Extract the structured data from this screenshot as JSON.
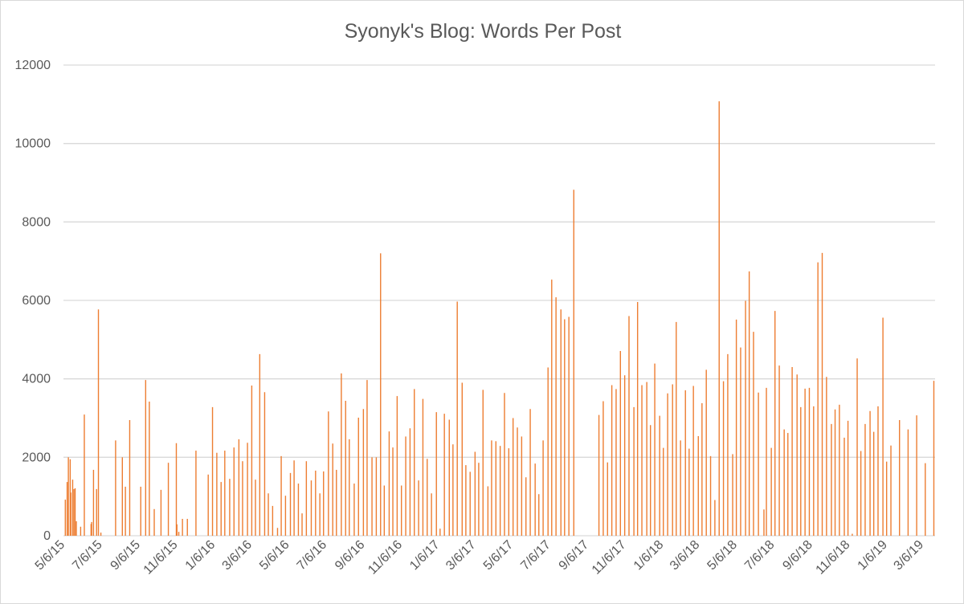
{
  "chart_data": {
    "type": "bar",
    "title": "Syonyk's Blog: Words Per Post",
    "xlabel": "",
    "ylabel": "",
    "ylim": [
      0,
      12000
    ],
    "yticks": [
      "0",
      "2000",
      "4000",
      "6000",
      "8000",
      "10000",
      "12000"
    ],
    "x_start_date": "5/6/15",
    "x_unit": "days since 5/6/15",
    "xlim_days": [
      -3,
      1418
    ],
    "xtick_labels": [
      "5/6/15",
      "7/6/15",
      "9/6/15",
      "11/6/15",
      "1/6/16",
      "3/6/16",
      "5/6/16",
      "7/6/16",
      "9/6/16",
      "11/6/16",
      "1/6/17",
      "3/6/17",
      "5/6/17",
      "7/6/17",
      "9/6/17",
      "11/6/17",
      "1/6/18",
      "3/6/18",
      "5/6/18",
      "7/6/18",
      "9/6/18",
      "11/6/18",
      "1/6/19",
      "3/6/19"
    ],
    "grid": true,
    "legend": "none",
    "bar_color": "#ED7D31",
    "series": [
      {
        "name": "Words Per Post",
        "points": [
          [
            0,
            920
          ],
          [
            3,
            1370
          ],
          [
            5,
            2000
          ],
          [
            8,
            1950
          ],
          [
            9,
            1100
          ],
          [
            12,
            1430
          ],
          [
            14,
            1190
          ],
          [
            16,
            1210
          ],
          [
            18,
            370
          ],
          [
            25,
            230
          ],
          [
            31,
            3090
          ],
          [
            42,
            300
          ],
          [
            43,
            350
          ],
          [
            46,
            1680
          ],
          [
            51,
            1190
          ],
          [
            54,
            5770
          ],
          [
            58,
            80
          ],
          [
            82,
            2430
          ],
          [
            93,
            2000
          ],
          [
            98,
            1250
          ],
          [
            105,
            2950
          ],
          [
            123,
            1250
          ],
          [
            131,
            3970
          ],
          [
            137,
            3420
          ],
          [
            145,
            680
          ],
          [
            156,
            1170
          ],
          [
            168,
            1860
          ],
          [
            181,
            2360
          ],
          [
            182,
            290
          ],
          [
            185,
            100
          ],
          [
            191,
            430
          ],
          [
            199,
            430
          ],
          [
            213,
            2170
          ],
          [
            233,
            1560
          ],
          [
            240,
            3280
          ],
          [
            247,
            2115
          ],
          [
            254,
            1370
          ],
          [
            260,
            2170
          ],
          [
            268,
            1450
          ],
          [
            275,
            2250
          ],
          [
            283,
            2460
          ],
          [
            289,
            1900
          ],
          [
            297,
            2370
          ],
          [
            304,
            3830
          ],
          [
            310,
            1430
          ],
          [
            317,
            4630
          ],
          [
            325,
            3660
          ],
          [
            331,
            1080
          ],
          [
            338,
            760
          ],
          [
            346,
            200
          ],
          [
            352,
            2030
          ],
          [
            359,
            1020
          ],
          [
            367,
            1600
          ],
          [
            373,
            1920
          ],
          [
            380,
            1330
          ],
          [
            386,
            570
          ],
          [
            393,
            1900
          ],
          [
            401,
            1410
          ],
          [
            408,
            1660
          ],
          [
            415,
            1080
          ],
          [
            421,
            1640
          ],
          [
            429,
            3170
          ],
          [
            436,
            2350
          ],
          [
            442,
            1680
          ],
          [
            450,
            4140
          ],
          [
            457,
            3440
          ],
          [
            463,
            2460
          ],
          [
            471,
            1330
          ],
          [
            478,
            3010
          ],
          [
            486,
            3230
          ],
          [
            492,
            3970
          ],
          [
            500,
            2000
          ],
          [
            507,
            2000
          ],
          [
            514,
            7200
          ],
          [
            520,
            1280
          ],
          [
            528,
            2660
          ],
          [
            534,
            2250
          ],
          [
            541,
            3560
          ],
          [
            548,
            1280
          ],
          [
            555,
            2530
          ],
          [
            562,
            2740
          ],
          [
            569,
            3740
          ],
          [
            576,
            1410
          ],
          [
            583,
            3490
          ],
          [
            590,
            1960
          ],
          [
            597,
            1080
          ],
          [
            605,
            3150
          ],
          [
            611,
            180
          ],
          [
            618,
            3110
          ],
          [
            626,
            2960
          ],
          [
            632,
            2330
          ],
          [
            639,
            5970
          ],
          [
            647,
            3900
          ],
          [
            653,
            1800
          ],
          [
            660,
            1630
          ],
          [
            668,
            2140
          ],
          [
            674,
            1860
          ],
          [
            681,
            3720
          ],
          [
            689,
            1260
          ],
          [
            695,
            2430
          ],
          [
            702,
            2410
          ],
          [
            709,
            2290
          ],
          [
            716,
            3640
          ],
          [
            723,
            2230
          ],
          [
            730,
            3000
          ],
          [
            737,
            2760
          ],
          [
            744,
            2530
          ],
          [
            751,
            1490
          ],
          [
            758,
            3230
          ],
          [
            766,
            1840
          ],
          [
            772,
            1060
          ],
          [
            779,
            2430
          ],
          [
            787,
            4290
          ],
          [
            793,
            6530
          ],
          [
            800,
            6080
          ],
          [
            808,
            5770
          ],
          [
            814,
            5520
          ],
          [
            821,
            5580
          ],
          [
            829,
            8820
          ],
          [
            870,
            3080
          ],
          [
            877,
            3430
          ],
          [
            884,
            1870
          ],
          [
            891,
            3840
          ],
          [
            898,
            3740
          ],
          [
            905,
            4710
          ],
          [
            912,
            4090
          ],
          [
            919,
            5600
          ],
          [
            927,
            3280
          ],
          [
            933,
            5960
          ],
          [
            940,
            3840
          ],
          [
            948,
            3920
          ],
          [
            954,
            2820
          ],
          [
            961,
            4390
          ],
          [
            969,
            3060
          ],
          [
            975,
            2240
          ],
          [
            982,
            3630
          ],
          [
            990,
            3860
          ],
          [
            996,
            5450
          ],
          [
            1003,
            2430
          ],
          [
            1011,
            3710
          ],
          [
            1017,
            2220
          ],
          [
            1024,
            3820
          ],
          [
            1032,
            2540
          ],
          [
            1038,
            3380
          ],
          [
            1045,
            4230
          ],
          [
            1052,
            2030
          ],
          [
            1059,
            910
          ],
          [
            1066,
            11075
          ],
          [
            1073,
            3940
          ],
          [
            1080,
            4630
          ],
          [
            1088,
            2080
          ],
          [
            1094,
            5510
          ],
          [
            1101,
            4800
          ],
          [
            1109,
            5990
          ],
          [
            1115,
            6740
          ],
          [
            1122,
            5200
          ],
          [
            1130,
            3650
          ],
          [
            1139,
            670
          ],
          [
            1143,
            3770
          ],
          [
            1151,
            2240
          ],
          [
            1157,
            5730
          ],
          [
            1164,
            4340
          ],
          [
            1172,
            2710
          ],
          [
            1178,
            2620
          ],
          [
            1185,
            4300
          ],
          [
            1193,
            4110
          ],
          [
            1199,
            3280
          ],
          [
            1206,
            3750
          ],
          [
            1213,
            3770
          ],
          [
            1220,
            3300
          ],
          [
            1227,
            6970
          ],
          [
            1234,
            7210
          ],
          [
            1241,
            4050
          ],
          [
            1249,
            2850
          ],
          [
            1255,
            3220
          ],
          [
            1262,
            3340
          ],
          [
            1270,
            2500
          ],
          [
            1276,
            2930
          ],
          [
            1283,
            50
          ],
          [
            1291,
            4520
          ],
          [
            1297,
            2160
          ],
          [
            1304,
            2850
          ],
          [
            1312,
            3180
          ],
          [
            1318,
            2650
          ],
          [
            1325,
            3300
          ],
          [
            1333,
            5560
          ],
          [
            1339,
            1890
          ],
          [
            1346,
            2300
          ],
          [
            1360,
            2950
          ],
          [
            1374,
            2710
          ],
          [
            1388,
            3070
          ],
          [
            1402,
            1850
          ],
          [
            1416,
            3950
          ]
        ]
      }
    ]
  }
}
